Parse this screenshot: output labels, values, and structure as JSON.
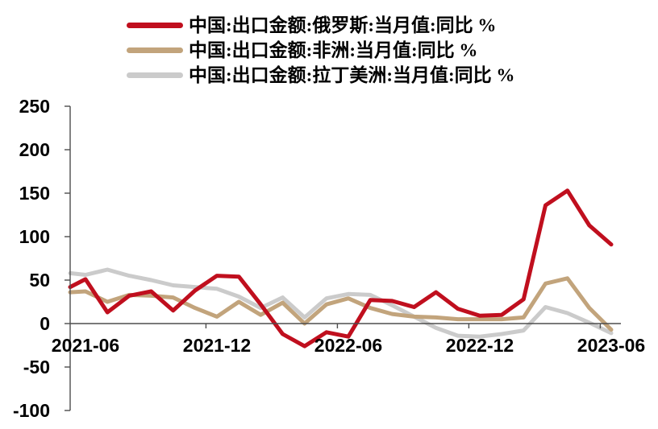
{
  "chart_data": {
    "type": "line",
    "title": "",
    "unit": "%",
    "x": [
      "2021-06",
      "2021-07",
      "2021-08",
      "2021-09",
      "2021-10",
      "2021-11",
      "2021-12",
      "2022-01",
      "2022-02",
      "2022-03",
      "2022-04",
      "2022-05",
      "2022-06",
      "2022-07",
      "2022-08",
      "2022-09",
      "2022-10",
      "2022-11",
      "2022-12",
      "2023-01",
      "2023-02",
      "2023-03",
      "2023-04",
      "2023-05",
      "2023-06"
    ],
    "x_tick_labels": [
      "2021-06",
      "2021-12",
      "2022-06",
      "2022-12",
      "2023-06"
    ],
    "x_tick_month_index": [
      0,
      6,
      12,
      18,
      24
    ],
    "y_ticks": [
      250,
      200,
      150,
      100,
      50,
      0,
      -50,
      -100
    ],
    "ylim": [
      -100,
      250
    ],
    "grid": false,
    "legend_position": "top-left",
    "series": [
      {
        "name": "中国:出口金额:俄罗斯:当月值:同比 %",
        "color": "#c00f1e",
        "axis_intercept": 42,
        "values": [
          51,
          13,
          32,
          37,
          15,
          38,
          55,
          54,
          22,
          -12,
          -26,
          -10,
          -15,
          27,
          26,
          19,
          36,
          17,
          9,
          10,
          28,
          136,
          153,
          113,
          91
        ]
      },
      {
        "name": "中国:出口金额:非洲:当月值:同比 %",
        "color": "#c2a47c",
        "axis_intercept": 36,
        "values": [
          37,
          25,
          33,
          32,
          30,
          18,
          8,
          25,
          10,
          24,
          0,
          22,
          29,
          18,
          11,
          8,
          7,
          5,
          5,
          5,
          7,
          46,
          52,
          18,
          -7
        ]
      },
      {
        "name": "中国:出口金额:拉丁美洲:当月值:同比 %",
        "color": "#cbcbcb",
        "axis_intercept": 58,
        "values": [
          56,
          62,
          55,
          50,
          44,
          42,
          40,
          31,
          18,
          30,
          7,
          29,
          34,
          33,
          21,
          8,
          -5,
          -14,
          -15,
          -12,
          -8,
          19,
          12,
          1,
          -11
        ]
      }
    ],
    "axis_color": "#4d4d4d"
  },
  "legend": {
    "note": "legend labels mirror chart_data.series names"
  }
}
